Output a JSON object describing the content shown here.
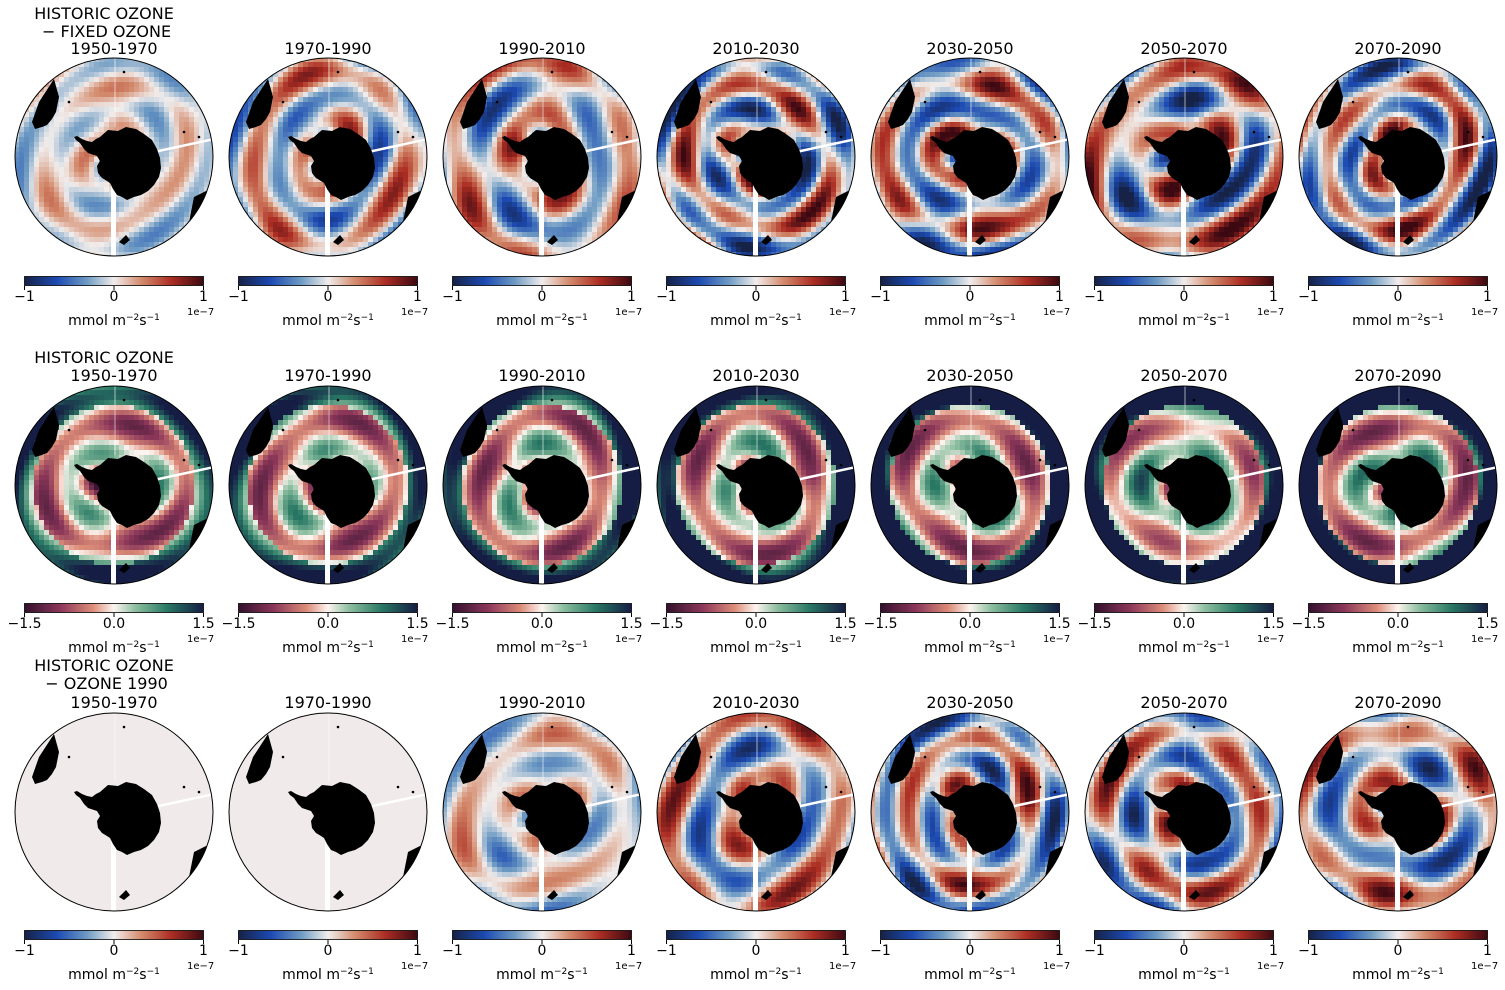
{
  "chart_data": {
    "type": "heatmap",
    "projection": "south-polar-stereographic",
    "colorbar_unit": {
      "base": "mmol m",
      "exp1": "−2",
      "mid": "s",
      "exp2": "−1"
    },
    "colorbar_exponent": "1e−7",
    "rows": [
      {
        "heading": [
          "HISTORIC OZONE",
          " − FIXED OZONE"
        ],
        "colormap": "balance",
        "clim": [
          -1,
          1
        ],
        "ticks": [
          "−1",
          "0",
          "1"
        ],
        "periods": [
          "1950-1970",
          "1970-1990",
          "1990-2010",
          "2010-2030",
          "2030-2050",
          "2050-2070",
          "2070-2090"
        ]
      },
      {
        "heading": [
          "HISTORIC OZONE"
        ],
        "colormap": "curl",
        "clim": [
          -1.5,
          1.5
        ],
        "ticks": [
          "−1.5",
          "0.0",
          "1.5"
        ],
        "periods": [
          "1950-1970",
          "1970-1990",
          "1990-2010",
          "2010-2030",
          "2030-2050",
          "2050-2070",
          "2070-2090"
        ]
      },
      {
        "heading": [
          "HISTORIC OZONE",
          " − OZONE 1990"
        ],
        "colormap": "balance",
        "clim": [
          -1,
          1
        ],
        "ticks": [
          "−1",
          "0",
          "1"
        ],
        "periods": [
          "1950-1970",
          "1970-1990",
          "1990-2010",
          "2010-2030",
          "2030-2050",
          "2050-2070",
          "2070-2090"
        ]
      }
    ],
    "field_description_by_row": [
      [
        "weak mixed anomalies",
        "alternating red/blue rings",
        "rings with stronger red",
        "strong alternating rings",
        "strong alternating rings",
        "strong alternating rings",
        "strong alternating rings"
      ],
      [
        "green outer ring, red inner zone",
        "green outer ring, red inner zone",
        "green rings, red patches",
        "green rings, weaker red",
        "dark green rings",
        "dark green rings",
        "dark green rings"
      ],
      [
        "near zero everywhere",
        "near zero everywhere",
        "weak mixed anomalies",
        "moderate rings",
        "moderate rings",
        "moderate rings",
        "moderate rings"
      ]
    ]
  }
}
